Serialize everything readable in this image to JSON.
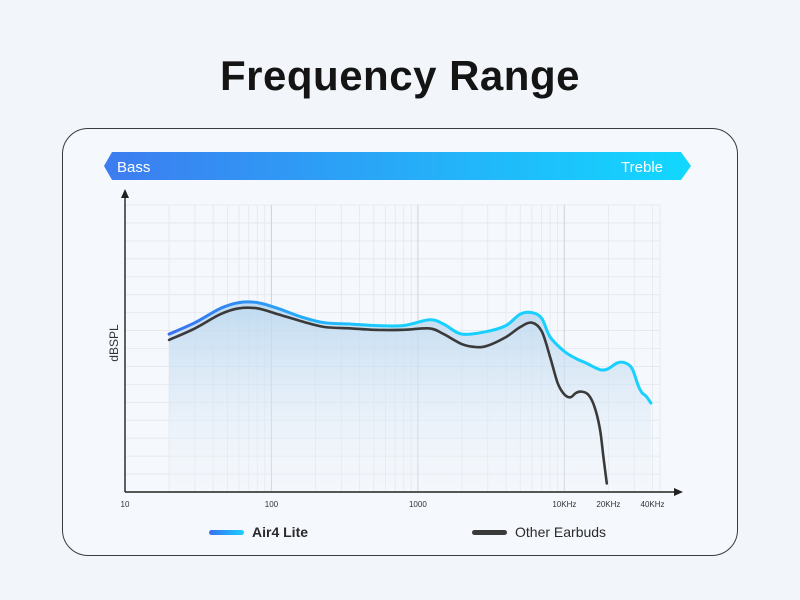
{
  "title": "Frequency Range",
  "band": {
    "left_label": "Bass",
    "right_label": "Treble"
  },
  "colors": {
    "band_start": "#3d7cf0",
    "band_end": "#12d8ff",
    "air4_start": "#3a6ff0",
    "air4_end": "#18d0ff",
    "other": "#3a3a3a",
    "fill_top": "#b9d6ee",
    "grid": "#e3e8ef"
  },
  "chart_data": {
    "type": "line",
    "title": "Frequency Range",
    "xlabel": "",
    "ylabel": "dBSPL",
    "x_scale": "log",
    "xlim": [
      10,
      45000
    ],
    "ylim": [
      0,
      100
    ],
    "x_ticks": [
      {
        "value": 10,
        "label": "10"
      },
      {
        "value": 100,
        "label": "100"
      },
      {
        "value": 1000,
        "label": "1000"
      },
      {
        "value": 10000,
        "label": "10KHz"
      },
      {
        "value": 20000,
        "label": "20KHz"
      },
      {
        "value": 40000,
        "label": "40KHz"
      }
    ],
    "grid": true,
    "legend_position": "bottom",
    "series": [
      {
        "name": "Air4 Lite",
        "points": [
          [
            20,
            55
          ],
          [
            30,
            59
          ],
          [
            45,
            64
          ],
          [
            60,
            66
          ],
          [
            80,
            66
          ],
          [
            110,
            64
          ],
          [
            160,
            61
          ],
          [
            230,
            59
          ],
          [
            350,
            58.5
          ],
          [
            500,
            58
          ],
          [
            800,
            58
          ],
          [
            1200,
            60
          ],
          [
            1500,
            58.5
          ],
          [
            2000,
            55
          ],
          [
            3000,
            56
          ],
          [
            4000,
            58
          ],
          [
            5000,
            62
          ],
          [
            6000,
            62.5
          ],
          [
            7000,
            60.5
          ],
          [
            8000,
            54
          ],
          [
            10000,
            49
          ],
          [
            12000,
            46.5
          ],
          [
            14000,
            45
          ],
          [
            16000,
            43.5
          ],
          [
            18000,
            42.5
          ],
          [
            20000,
            43
          ],
          [
            23000,
            45
          ],
          [
            26000,
            45
          ],
          [
            29000,
            43
          ],
          [
            32000,
            37
          ],
          [
            34000,
            34.5
          ],
          [
            36000,
            33.5
          ],
          [
            39000,
            31
          ]
        ]
      },
      {
        "name": "Other Earbuds",
        "points": [
          [
            20,
            53
          ],
          [
            30,
            57
          ],
          [
            45,
            62
          ],
          [
            60,
            64
          ],
          [
            80,
            64
          ],
          [
            110,
            62
          ],
          [
            160,
            59.5
          ],
          [
            230,
            57.5
          ],
          [
            350,
            57
          ],
          [
            500,
            56.5
          ],
          [
            800,
            56.5
          ],
          [
            1200,
            57
          ],
          [
            1500,
            55
          ],
          [
            2000,
            51.5
          ],
          [
            2500,
            50.5
          ],
          [
            3000,
            51
          ],
          [
            4000,
            54
          ],
          [
            5000,
            57.5
          ],
          [
            6000,
            59
          ],
          [
            7000,
            56
          ],
          [
            8000,
            47
          ],
          [
            9000,
            38
          ],
          [
            10000,
            34
          ],
          [
            11000,
            33
          ],
          [
            12000,
            34.5
          ],
          [
            13000,
            35
          ],
          [
            14500,
            34
          ],
          [
            16000,
            30
          ],
          [
            17500,
            22
          ],
          [
            18500,
            12
          ],
          [
            19500,
            3
          ]
        ]
      }
    ]
  }
}
